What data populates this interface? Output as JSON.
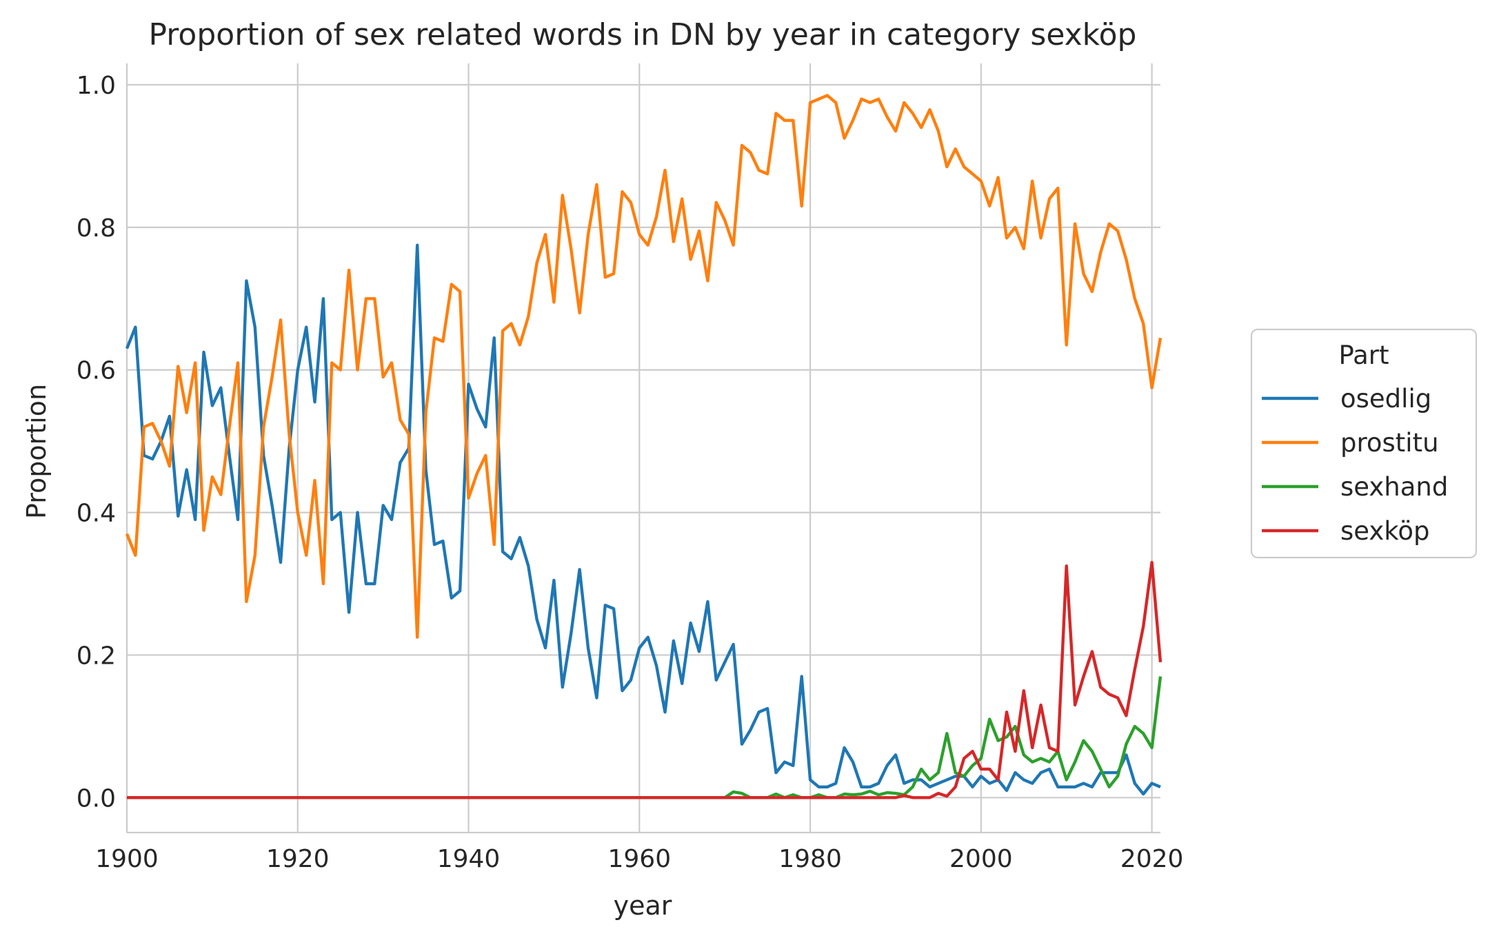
{
  "chart_data": {
    "type": "line",
    "title": "Proportion of sex related words in DN by year in category sexköp",
    "xlabel": "year",
    "ylabel": "Proportion",
    "xlim": [
      1900,
      2021
    ],
    "ylim": [
      -0.049,
      1.03
    ],
    "xticks": [
      1900,
      1920,
      1940,
      1960,
      1980,
      2000,
      2020
    ],
    "yticks": [
      "0.0",
      "0.2",
      "0.4",
      "0.6",
      "0.8",
      "1.0"
    ],
    "grid": true,
    "legend": {
      "title": "Part",
      "placement": "center-right-outside"
    },
    "x": [
      1900,
      1901,
      1902,
      1903,
      1904,
      1905,
      1906,
      1907,
      1908,
      1909,
      1910,
      1911,
      1912,
      1913,
      1914,
      1915,
      1916,
      1917,
      1918,
      1919,
      1920,
      1921,
      1922,
      1923,
      1924,
      1925,
      1926,
      1927,
      1928,
      1929,
      1930,
      1931,
      1932,
      1933,
      1934,
      1935,
      1936,
      1937,
      1938,
      1939,
      1940,
      1941,
      1942,
      1943,
      1944,
      1945,
      1946,
      1947,
      1948,
      1949,
      1950,
      1951,
      1952,
      1953,
      1954,
      1955,
      1956,
      1957,
      1958,
      1959,
      1960,
      1961,
      1962,
      1963,
      1964,
      1965,
      1966,
      1967,
      1968,
      1969,
      1970,
      1971,
      1972,
      1973,
      1974,
      1975,
      1976,
      1977,
      1978,
      1979,
      1980,
      1981,
      1982,
      1983,
      1984,
      1985,
      1986,
      1987,
      1988,
      1989,
      1990,
      1991,
      1992,
      1993,
      1994,
      1995,
      1996,
      1997,
      1998,
      1999,
      2000,
      2001,
      2002,
      2003,
      2004,
      2005,
      2006,
      2007,
      2008,
      2009,
      2010,
      2011,
      2012,
      2013,
      2014,
      2015,
      2016,
      2017,
      2018,
      2019,
      2020,
      2021
    ],
    "series": [
      {
        "name": "osedlig",
        "color": "#1f77b4",
        "values": [
          0.63,
          0.66,
          0.48,
          0.475,
          0.5,
          0.535,
          0.395,
          0.46,
          0.39,
          0.625,
          0.55,
          0.575,
          0.48,
          0.39,
          0.725,
          0.66,
          0.48,
          0.41,
          0.33,
          0.49,
          0.6,
          0.66,
          0.555,
          0.7,
          0.39,
          0.4,
          0.26,
          0.4,
          0.3,
          0.3,
          0.41,
          0.39,
          0.47,
          0.49,
          0.775,
          0.46,
          0.355,
          0.36,
          0.28,
          0.29,
          0.58,
          0.545,
          0.52,
          0.645,
          0.345,
          0.335,
          0.365,
          0.325,
          0.25,
          0.21,
          0.305,
          0.155,
          0.23,
          0.32,
          0.21,
          0.14,
          0.27,
          0.265,
          0.15,
          0.165,
          0.21,
          0.225,
          0.185,
          0.12,
          0.22,
          0.16,
          0.245,
          0.205,
          0.275,
          0.165,
          0.19,
          0.215,
          0.075,
          0.095,
          0.12,
          0.125,
          0.035,
          0.05,
          0.045,
          0.17,
          0.025,
          0.015,
          0.015,
          0.02,
          0.07,
          0.05,
          0.015,
          0.015,
          0.02,
          0.045,
          0.06,
          0.02,
          0.025,
          0.025,
          0.015,
          0.02,
          0.025,
          0.03,
          0.03,
          0.015,
          0.03,
          0.02,
          0.025,
          0.01,
          0.035,
          0.025,
          0.02,
          0.035,
          0.04,
          0.015,
          0.015,
          0.015,
          0.02,
          0.015,
          0.035,
          0.035,
          0.035,
          0.06,
          0.02,
          0.005,
          0.02,
          0.015
        ]
      },
      {
        "name": "prostitu",
        "color": "#ff7f0e",
        "values": [
          0.37,
          0.34,
          0.52,
          0.525,
          0.5,
          0.465,
          0.605,
          0.54,
          0.61,
          0.375,
          0.45,
          0.425,
          0.52,
          0.61,
          0.275,
          0.34,
          0.52,
          0.59,
          0.67,
          0.51,
          0.4,
          0.34,
          0.445,
          0.3,
          0.61,
          0.6,
          0.74,
          0.6,
          0.7,
          0.7,
          0.59,
          0.61,
          0.53,
          0.51,
          0.225,
          0.54,
          0.645,
          0.64,
          0.72,
          0.71,
          0.42,
          0.455,
          0.48,
          0.355,
          0.655,
          0.665,
          0.635,
          0.675,
          0.75,
          0.79,
          0.695,
          0.845,
          0.77,
          0.68,
          0.79,
          0.86,
          0.73,
          0.735,
          0.85,
          0.835,
          0.79,
          0.775,
          0.815,
          0.88,
          0.78,
          0.84,
          0.755,
          0.795,
          0.725,
          0.835,
          0.81,
          0.775,
          0.915,
          0.905,
          0.88,
          0.875,
          0.96,
          0.95,
          0.95,
          0.83,
          0.975,
          0.98,
          0.985,
          0.975,
          0.925,
          0.95,
          0.98,
          0.975,
          0.98,
          0.955,
          0.935,
          0.975,
          0.96,
          0.94,
          0.965,
          0.935,
          0.885,
          0.91,
          0.885,
          0.875,
          0.865,
          0.83,
          0.87,
          0.785,
          0.8,
          0.77,
          0.865,
          0.785,
          0.84,
          0.855,
          0.635,
          0.805,
          0.735,
          0.71,
          0.765,
          0.805,
          0.795,
          0.755,
          0.7,
          0.665,
          0.575,
          0.645
        ]
      },
      {
        "name": "sexhand",
        "color": "#2ca02c",
        "values": [
          0,
          0,
          0,
          0,
          0,
          0,
          0,
          0,
          0,
          0,
          0,
          0,
          0,
          0,
          0,
          0,
          0,
          0,
          0,
          0,
          0,
          0,
          0,
          0,
          0,
          0,
          0,
          0,
          0,
          0,
          0,
          0,
          0,
          0,
          0,
          0,
          0,
          0,
          0,
          0,
          0,
          0,
          0,
          0,
          0,
          0,
          0,
          0,
          0,
          0,
          0,
          0,
          0,
          0,
          0,
          0,
          0,
          0,
          0,
          0,
          0,
          0,
          0,
          0,
          0,
          0,
          0,
          0,
          0,
          0,
          0,
          0.008,
          0.006,
          0,
          0,
          0,
          0.005,
          0,
          0.004,
          0,
          0,
          0.004,
          0,
          0,
          0.005,
          0.004,
          0.005,
          0.009,
          0.004,
          0.007,
          0.006,
          0.004,
          0.015,
          0.04,
          0.025,
          0.035,
          0.09,
          0.035,
          0.03,
          0.045,
          0.055,
          0.11,
          0.08,
          0.085,
          0.1,
          0.06,
          0.05,
          0.055,
          0.05,
          0.065,
          0.025,
          0.05,
          0.08,
          0.065,
          0.04,
          0.015,
          0.03,
          0.075,
          0.1,
          0.09,
          0.07,
          0.17
        ]
      },
      {
        "name": "sexköp",
        "color": "#d62728",
        "values": [
          0,
          0,
          0,
          0,
          0,
          0,
          0,
          0,
          0,
          0,
          0,
          0,
          0,
          0,
          0,
          0,
          0,
          0,
          0,
          0,
          0,
          0,
          0,
          0,
          0,
          0,
          0,
          0,
          0,
          0,
          0,
          0,
          0,
          0,
          0,
          0,
          0,
          0,
          0,
          0,
          0,
          0,
          0,
          0,
          0,
          0,
          0,
          0,
          0,
          0,
          0,
          0,
          0,
          0,
          0,
          0,
          0,
          0,
          0,
          0,
          0,
          0,
          0,
          0,
          0,
          0,
          0,
          0,
          0,
          0,
          0,
          0,
          0,
          0,
          0,
          0,
          0,
          0,
          0,
          0,
          0,
          0,
          0,
          0,
          0,
          0,
          0,
          0,
          0,
          0,
          0,
          0.003,
          0,
          0,
          0,
          0.006,
          0.002,
          0.015,
          0.055,
          0.065,
          0.04,
          0.04,
          0.025,
          0.12,
          0.065,
          0.15,
          0.07,
          0.13,
          0.07,
          0.065,
          0.325,
          0.13,
          0.17,
          0.205,
          0.155,
          0.145,
          0.14,
          0.115,
          0.18,
          0.24,
          0.33,
          0.19
        ]
      }
    ]
  }
}
